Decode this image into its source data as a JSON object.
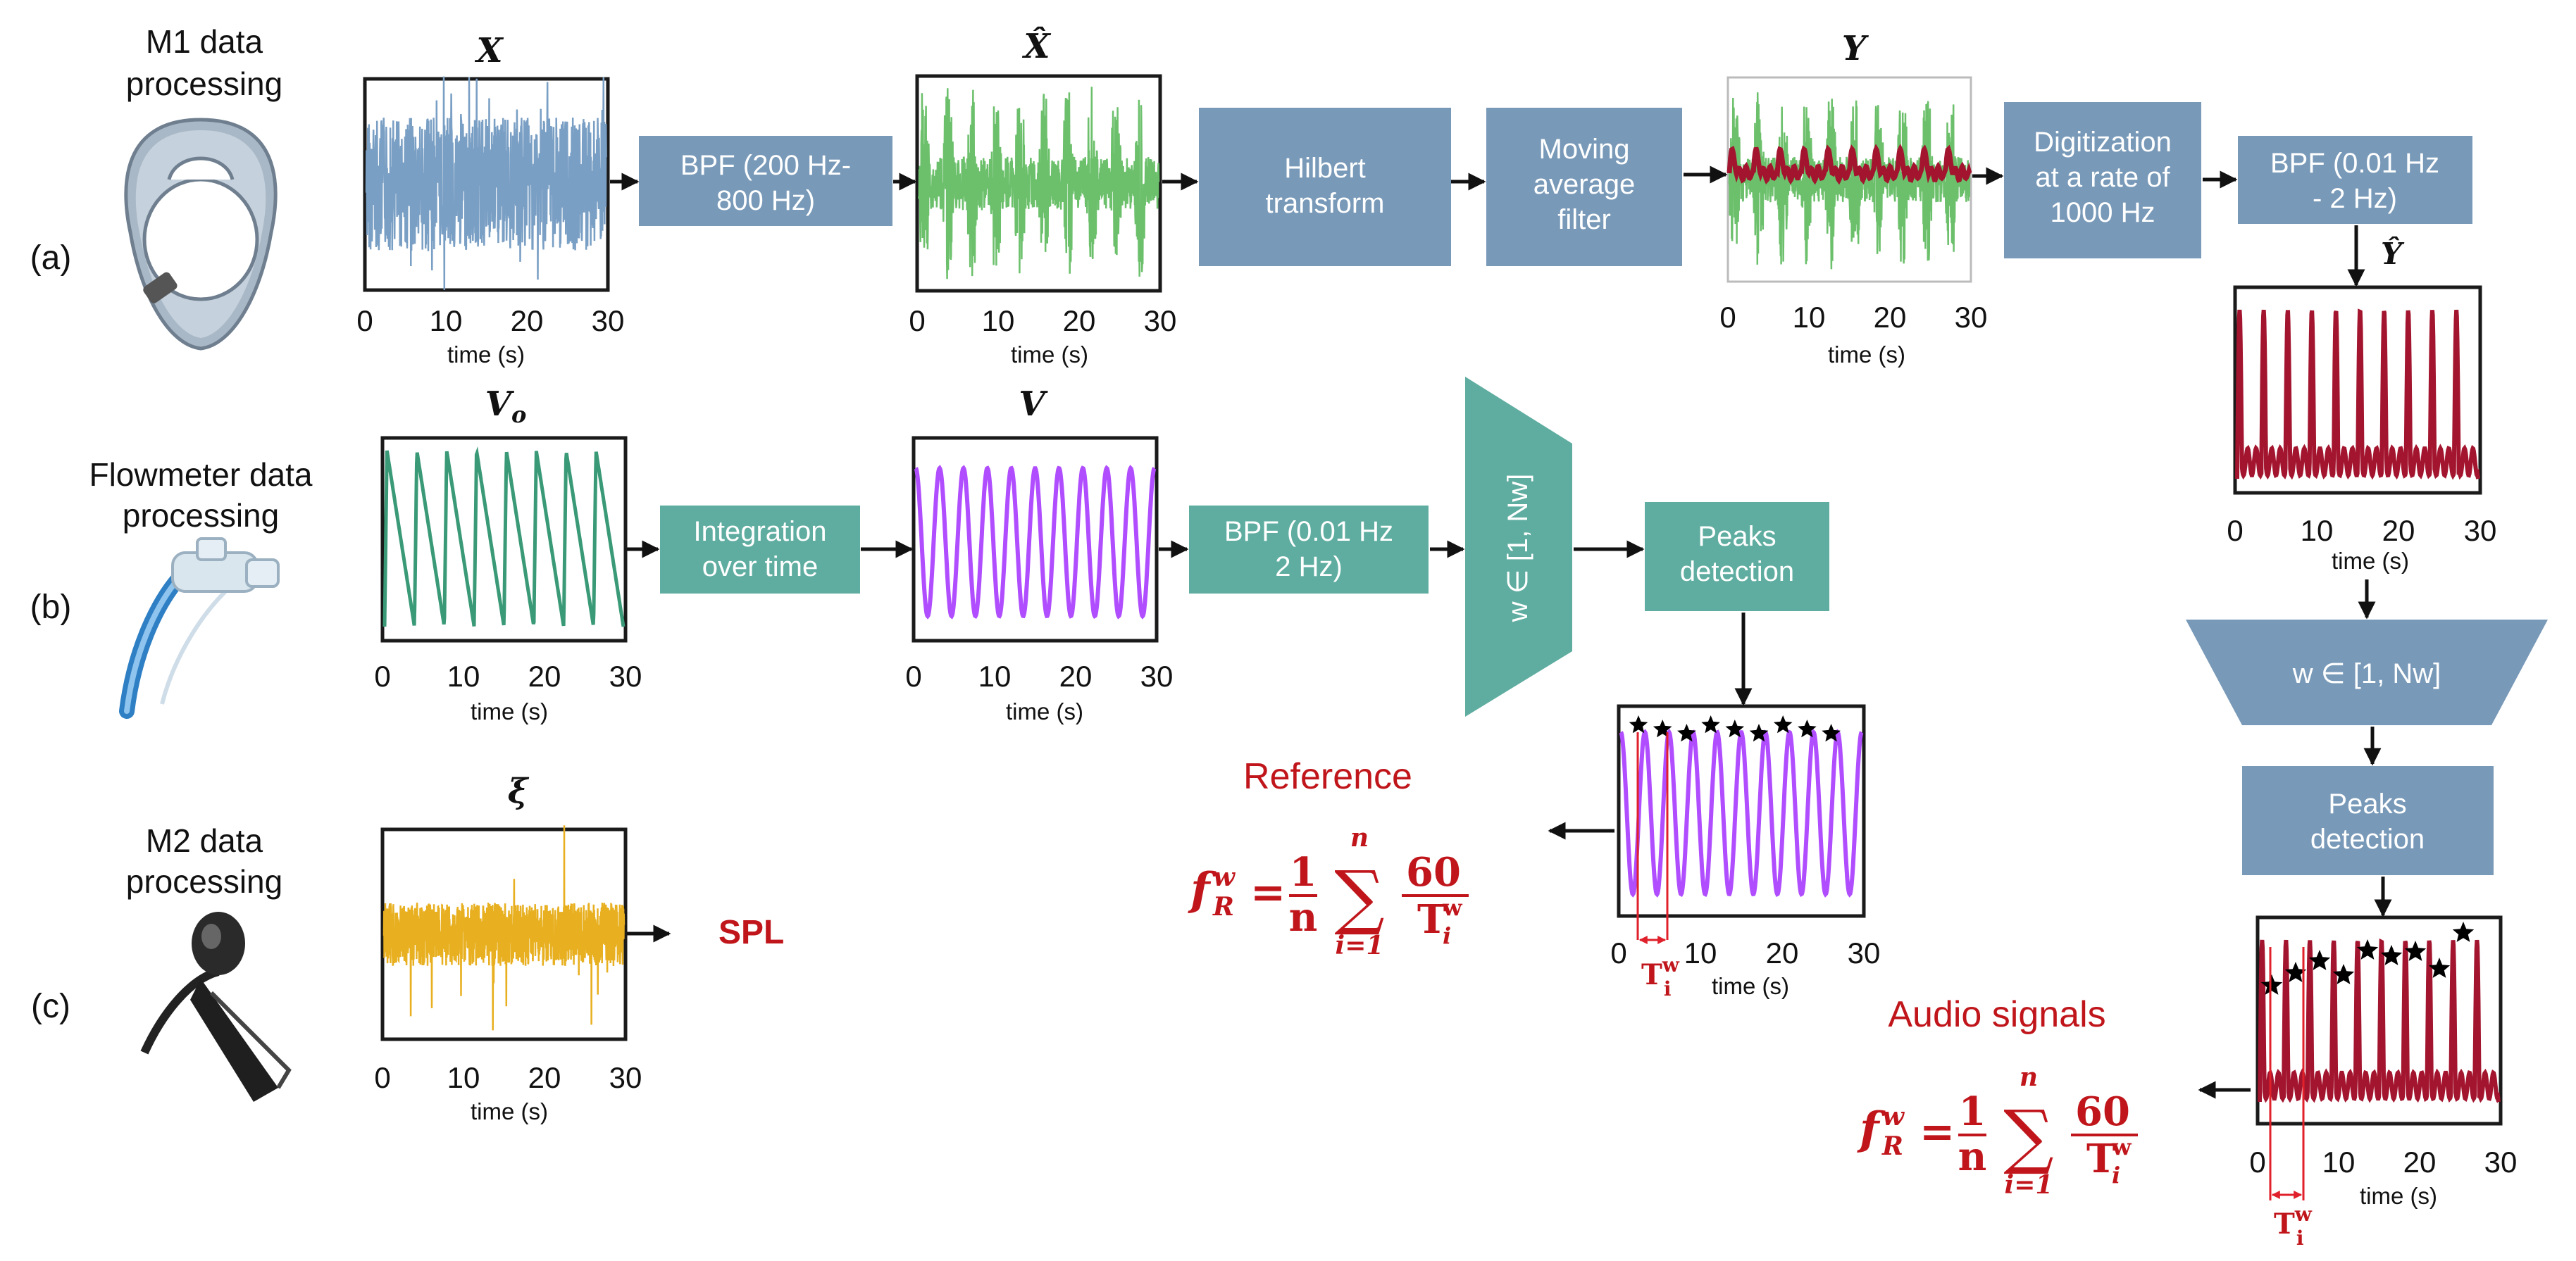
{
  "sections": {
    "m1_title": "M1 data processing",
    "m1_line1": "M1 data",
    "m1_line2": "processing",
    "flow_title": "Flowmeter data processing",
    "flow_line1": "Flowmeter data",
    "flow_line2": "processing",
    "m2_title": "M2 data processing",
    "m2_line1": "M2 data",
    "m2_line2": "processing"
  },
  "rows": {
    "a": "(a)",
    "b": "(b)",
    "c": "(c)"
  },
  "plot_titles": {
    "X": "X",
    "Xhat": "X̂",
    "Y": "Y",
    "Yhat": "Ŷ",
    "Vo": "Vo",
    "Vo_base": "V",
    "Vo_sub": "o",
    "V": "V",
    "xi": "ξ"
  },
  "axis": {
    "xlabel": "time (s)",
    "ticks": [
      "0",
      "10",
      "20",
      "30"
    ]
  },
  "blocks": {
    "bpf_a1": "BPF (200 Hz-800 Hz)",
    "bpf_a1_l1": "BPF (200 Hz-",
    "bpf_a1_l2": "800 Hz)",
    "hilbert": "Hilbert transform",
    "hilbert_l1": "Hilbert",
    "hilbert_l2": "transform",
    "mavg": "Moving average filter",
    "mavg_l1": "Moving",
    "mavg_l2": "average",
    "mavg_l3": "filter",
    "digit": "Digitization at a rate of 1000 Hz",
    "digit_l1": "Digitization",
    "digit_l2": "at a rate of",
    "digit_l3": "1000 Hz",
    "bpf_a2": "BPF (0.01 Hz - 2 Hz)",
    "bpf_a2_l1": "BPF (0.01 Hz",
    "bpf_a2_l2": "- 2 Hz)",
    "window_a": "w ∈ [1, Nw]",
    "peaks_a": "Peaks detection",
    "peaks_a_l1": "Peaks",
    "peaks_a_l2": "detection",
    "integration": "Integration over time",
    "integration_l1": "Integration",
    "integration_l2": "over time",
    "bpf_b": "BPF (0.01 Hz 2 Hz)",
    "bpf_b_l1": "BPF (0.01 Hz",
    "bpf_b_l2": "2 Hz)",
    "window_b": "w ∈ [1, Nw]",
    "peaks_b": "Peaks detection",
    "peaks_b_l1": "Peaks",
    "peaks_b_l2": "detection"
  },
  "outputs": {
    "spl": "SPL",
    "reference": "Reference",
    "audio": "Audio signals"
  },
  "formula": {
    "lhs": "f",
    "lhs_sup": "w",
    "lhs_sub": "R",
    "eq": "=",
    "frac_num": "1",
    "frac_den": "n",
    "sum": "∑",
    "sum_top": "n",
    "sum_bot": "i=1",
    "num": "60",
    "den": "T",
    "den_sup": "w",
    "den_sub": "i"
  },
  "period_label": {
    "base": "T",
    "sup": "w",
    "sub": "i"
  },
  "colors": {
    "blue_box": "#7899b8",
    "teal_box": "#5fada0",
    "raw_signal": "#7a9fc4",
    "filtered_signal": "#6cc06c",
    "envelope": "#a3142e",
    "flow_raw": "#3a9a78",
    "flow_volume": "#b04dff",
    "m2_signal": "#e8b020",
    "formula_red": "#c0161b"
  }
}
